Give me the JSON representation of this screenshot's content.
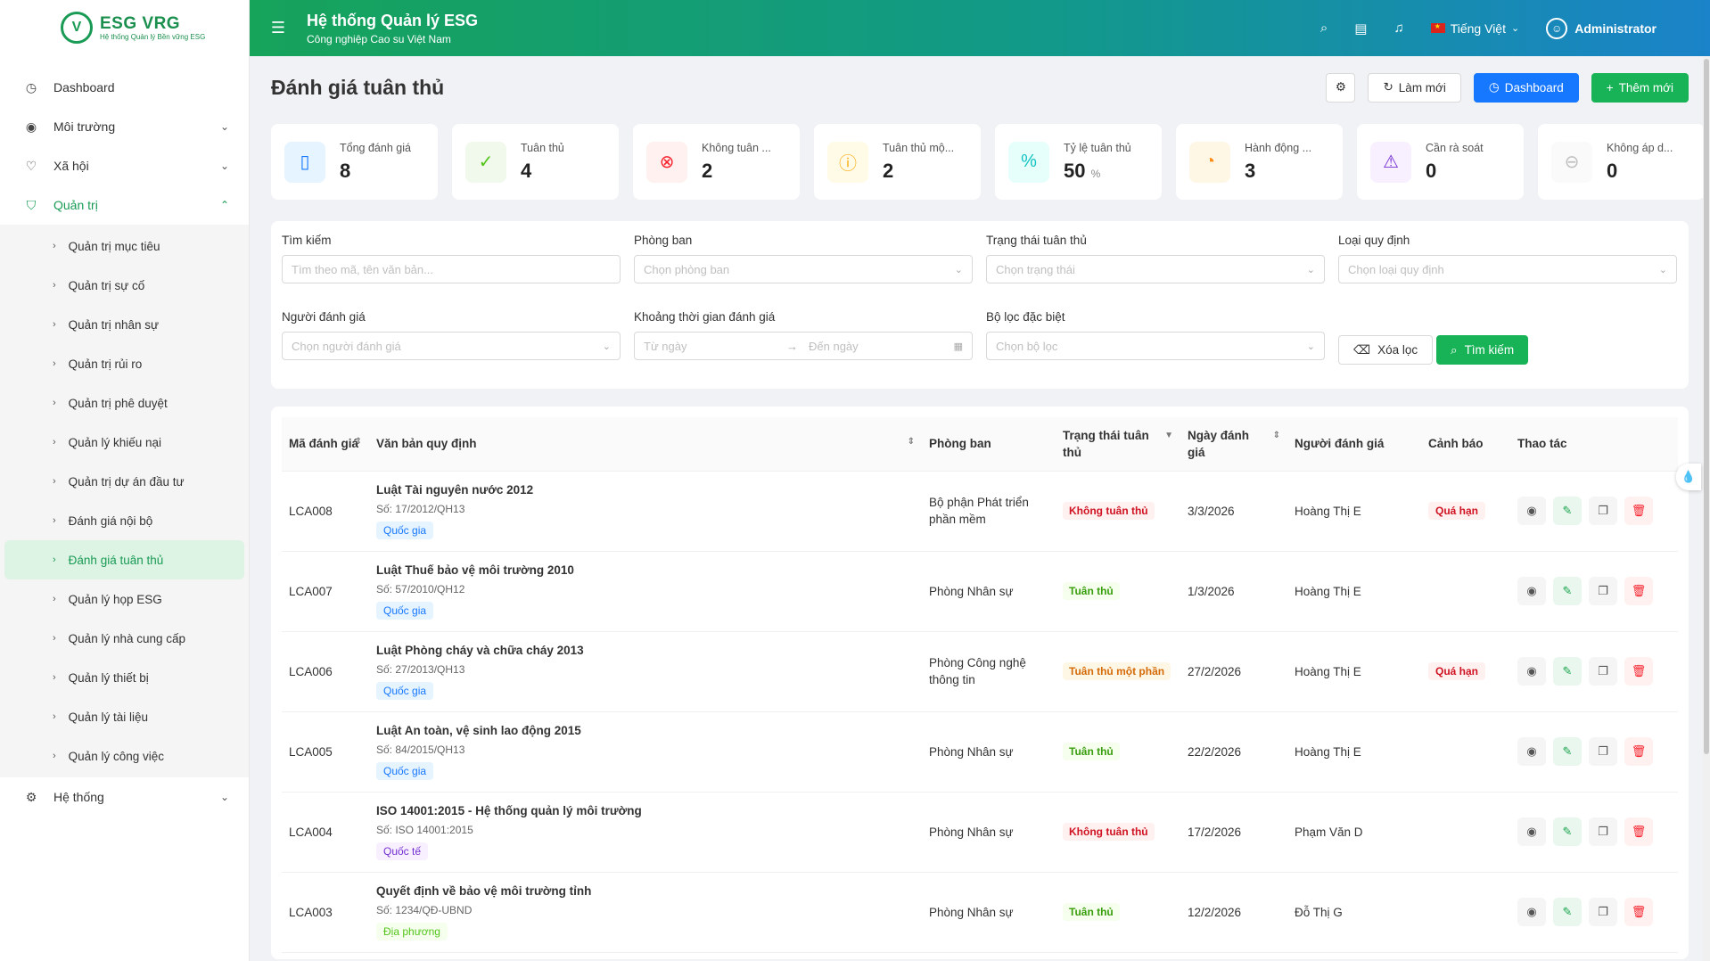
{
  "brand": {
    "mark": "V",
    "name": "ESG VRG",
    "tagline": "Hệ thống Quản lý Bền vững ESG"
  },
  "sidebar": {
    "items": [
      {
        "label": "Dashboard"
      },
      {
        "label": "Môi trường"
      },
      {
        "label": "Xã hội"
      },
      {
        "label": "Quản trị"
      }
    ],
    "sub_items": [
      {
        "label": "Quản trị mục tiêu"
      },
      {
        "label": "Quản trị sự cố"
      },
      {
        "label": "Quản trị nhân sự"
      },
      {
        "label": "Quản trị rủi ro"
      },
      {
        "label": "Quản trị phê duyệt"
      },
      {
        "label": "Quản lý khiếu nại"
      },
      {
        "label": "Quản trị dự án đầu tư"
      },
      {
        "label": "Đánh giá nội bộ"
      },
      {
        "label": "Đánh giá tuân thủ"
      },
      {
        "label": "Quản lý họp ESG"
      },
      {
        "label": "Quản lý nhà cung cấp"
      },
      {
        "label": "Quản lý thiết bị"
      },
      {
        "label": "Quản lý tài liệu"
      },
      {
        "label": "Quản lý công việc"
      }
    ],
    "system": {
      "label": "Hệ thống"
    }
  },
  "header": {
    "title": "Hệ thống Quản lý ESG",
    "subtitle": "Công nghiệp Cao su Việt Nam",
    "language": "Tiếng Việt",
    "user": "Administrator"
  },
  "page": {
    "title": "Đánh giá tuân thủ",
    "refresh_label": "Làm mới",
    "dashboard_label": "Dashboard",
    "add_label": "Thêm mới"
  },
  "stats": [
    {
      "label": "Tổng đánh giá",
      "value": "8",
      "unit": "",
      "color": "#1677ff",
      "bg": "#e6f4ff",
      "icon": "document-icon"
    },
    {
      "label": "Tuân thủ",
      "value": "4",
      "unit": "",
      "color": "#52c41a",
      "bg": "#f0f9eb",
      "icon": "check-circle-icon"
    },
    {
      "label": "Không tuân ...",
      "value": "2",
      "unit": "",
      "color": "#f5222d",
      "bg": "#fff1f0",
      "icon": "x-circle-icon"
    },
    {
      "label": "Tuân thủ mộ...",
      "value": "2",
      "unit": "",
      "color": "#faad14",
      "bg": "#fffbe6",
      "icon": "warning-circle-icon"
    },
    {
      "label": "Tỷ lệ tuân thủ",
      "value": "50",
      "unit": "%",
      "color": "#13c2c2",
      "bg": "#e6fffb",
      "icon": "percent-icon"
    },
    {
      "label": "Hành động ...",
      "value": "3",
      "unit": "",
      "color": "#fa8c16",
      "bg": "#fff7e6",
      "icon": "clock-icon"
    },
    {
      "label": "Cần rà soát",
      "value": "0",
      "unit": "",
      "color": "#722ed1",
      "bg": "#f9f0ff",
      "icon": "alarm-icon"
    },
    {
      "label": "Không áp d...",
      "value": "0",
      "unit": "",
      "color": "#bfbfbf",
      "bg": "#fafafa",
      "icon": "minus-circle-icon"
    }
  ],
  "filters": {
    "search": {
      "label": "Tìm kiếm",
      "placeholder": "Tìm theo mã, tên văn bản..."
    },
    "department": {
      "label": "Phòng ban",
      "placeholder": "Chọn phòng ban"
    },
    "status": {
      "label": "Trạng thái tuân thủ",
      "placeholder": "Chọn trạng thái"
    },
    "regulation_type": {
      "label": "Loại quy định",
      "placeholder": "Chọn loại quy định"
    },
    "assessor": {
      "label": "Người đánh giá",
      "placeholder": "Chọn người đánh giá"
    },
    "period": {
      "label": "Khoảng thời gian đánh giá",
      "from": "Từ ngày",
      "to": "Đến ngày"
    },
    "special": {
      "label": "Bộ lọc đặc biệt",
      "placeholder": "Chọn bộ lọc"
    },
    "clear_label": "Xóa lọc",
    "search_label": "Tìm kiếm"
  },
  "table": {
    "columns": [
      "Mã đánh giá",
      "Văn bản quy định",
      "Phòng ban",
      "Trạng thái tuân thủ",
      "Ngày đánh giá",
      "Người đánh giá",
      "Cảnh báo",
      "Thao tác"
    ],
    "rows": [
      {
        "code": "LCA008",
        "title": "Luật Tài nguyên nước 2012",
        "number": "Số: 17/2012/QH13",
        "scope": "Quốc gia",
        "scope_type": "nat",
        "department": "Bộ phận Phát triển phần mềm",
        "status": "Không tuân thủ",
        "status_type": "no",
        "date": "3/3/2026",
        "assessor": "Hoàng Thị E",
        "warning": "Quá hạn"
      },
      {
        "code": "LCA007",
        "title": "Luật Thuế bảo vệ môi trường 2010",
        "number": "Số: 57/2010/QH12",
        "scope": "Quốc gia",
        "scope_type": "nat",
        "department": "Phòng Nhân sự",
        "status": "Tuân thủ",
        "status_type": "yes",
        "date": "1/3/2026",
        "assessor": "Hoàng Thị E",
        "warning": ""
      },
      {
        "code": "LCA006",
        "title": "Luật Phòng cháy và chữa cháy 2013",
        "number": "Số: 27/2013/QH13",
        "scope": "Quốc gia",
        "scope_type": "nat",
        "department": "Phòng Công nghệ thông tin",
        "status": "Tuân thủ một phần",
        "status_type": "part",
        "date": "27/2/2026",
        "assessor": "Hoàng Thị E",
        "warning": "Quá hạn"
      },
      {
        "code": "LCA005",
        "title": "Luật An toàn, vệ sinh lao động 2015",
        "number": "Số: 84/2015/QH13",
        "scope": "Quốc gia",
        "scope_type": "nat",
        "department": "Phòng Nhân sự",
        "status": "Tuân thủ",
        "status_type": "yes",
        "date": "22/2/2026",
        "assessor": "Hoàng Thị E",
        "warning": ""
      },
      {
        "code": "LCA004",
        "title": "ISO 14001:2015 - Hệ thống quản lý môi trường",
        "number": "Số: ISO 14001:2015",
        "scope": "Quốc tế",
        "scope_type": "intl",
        "department": "Phòng Nhân sự",
        "status": "Không tuân thủ",
        "status_type": "no",
        "date": "17/2/2026",
        "assessor": "Phạm Văn D",
        "warning": ""
      },
      {
        "code": "LCA003",
        "title": "Quyết định về bảo vệ môi trường tỉnh",
        "number": "Số: 1234/QĐ-UBND",
        "scope": "Địa phương",
        "scope_type": "loc",
        "department": "Phòng Nhân sự",
        "status": "Tuân thủ",
        "status_type": "yes",
        "date": "12/2/2026",
        "assessor": "Đỗ Thị G",
        "warning": ""
      }
    ]
  }
}
